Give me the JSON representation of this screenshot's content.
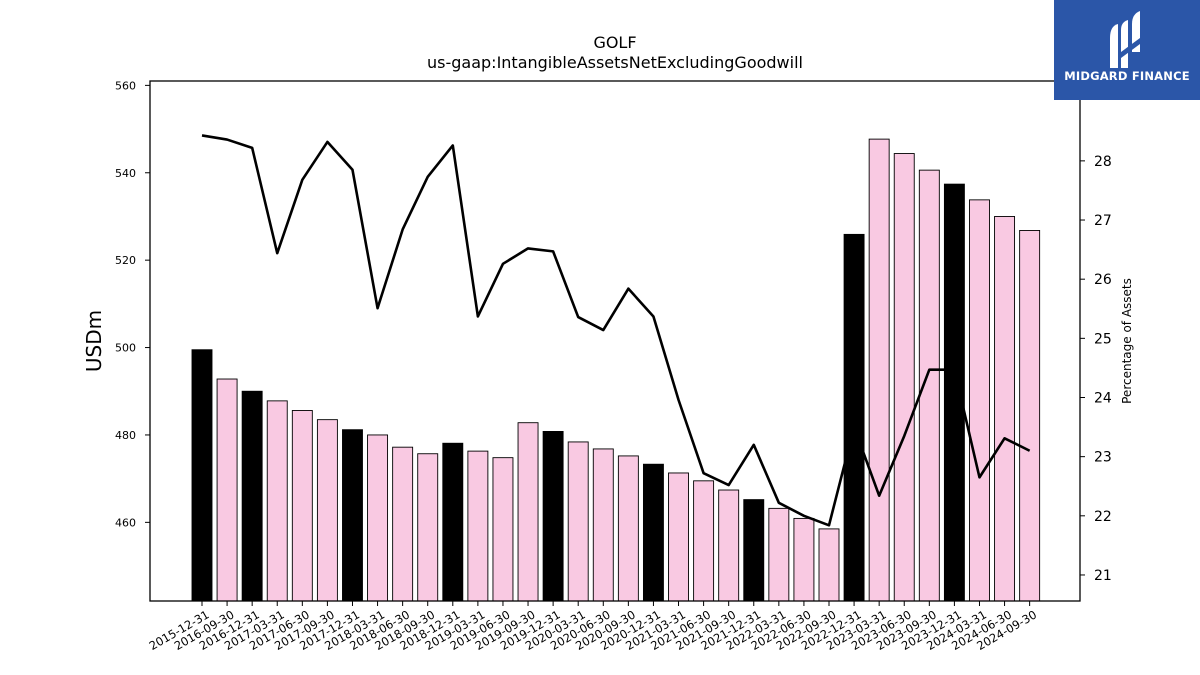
{
  "chart_data": {
    "type": "bar+line",
    "title": "GOLF",
    "subtitle": "us-gaap:IntangibleAssetsNetExcludingGoodwill",
    "ylabel": "USDm",
    "y2label": "Percentage of Assets",
    "ylim": [
      442,
      561
    ],
    "y2lim": [
      20.56,
      29.35
    ],
    "yticks": [
      460,
      480,
      500,
      520,
      540,
      560
    ],
    "y2ticks": [
      21,
      22,
      23,
      24,
      25,
      26,
      27,
      28
    ],
    "categories": [
      "2015-12-31",
      "2016-09-30",
      "2016-12-31",
      "2017-03-31",
      "2017-06-30",
      "2017-09-30",
      "2017-12-31",
      "2018-03-31",
      "2018-06-30",
      "2018-09-30",
      "2018-12-31",
      "2019-03-31",
      "2019-06-30",
      "2019-09-30",
      "2019-12-31",
      "2020-03-31",
      "2020-06-30",
      "2020-09-30",
      "2020-12-31",
      "2021-03-31",
      "2021-06-30",
      "2021-09-30",
      "2021-12-31",
      "2022-03-31",
      "2022-06-30",
      "2022-09-30",
      "2022-12-31",
      "2023-03-31",
      "2023-06-30",
      "2023-09-30",
      "2023-12-31",
      "2024-03-31",
      "2024-06-30",
      "2024-09-30"
    ],
    "series": [
      {
        "kind": "bar",
        "values": [
          499.5,
          492.8,
          490.0,
          487.8,
          485.6,
          483.5,
          481.2,
          480.0,
          477.2,
          475.7,
          478.1,
          476.3,
          474.8,
          482.8,
          480.8,
          478.4,
          476.8,
          475.2,
          473.3,
          471.3,
          469.5,
          467.4,
          465.2,
          463.2,
          460.9,
          458.5,
          525.9,
          547.7,
          544.4,
          540.6,
          537.4,
          533.8,
          530.0,
          526.8
        ],
        "annual": [
          true,
          false,
          true,
          false,
          false,
          false,
          true,
          false,
          false,
          false,
          true,
          false,
          false,
          false,
          true,
          false,
          false,
          false,
          true,
          false,
          false,
          false,
          true,
          false,
          false,
          false,
          true,
          false,
          false,
          false,
          true,
          false,
          false,
          false
        ]
      },
      {
        "kind": "line",
        "axis": "right",
        "values": [
          28.43,
          28.36,
          28.22,
          26.44,
          27.68,
          28.32,
          27.85,
          25.51,
          26.84,
          27.73,
          28.26,
          25.37,
          26.26,
          26.52,
          26.47,
          25.36,
          25.14,
          25.84,
          25.37,
          23.96,
          22.72,
          22.52,
          23.2,
          22.22,
          22.0,
          21.84,
          23.5,
          22.34,
          23.35,
          24.47,
          24.47,
          22.65,
          23.31,
          23.1
        ]
      }
    ],
    "colors": {
      "annual_bar": "#000000",
      "quarter_bar": "#f9c9e2",
      "line": "#000000"
    }
  },
  "logo": {
    "text": "MIDGARD FINANCE",
    "background": "#2b56a8"
  }
}
